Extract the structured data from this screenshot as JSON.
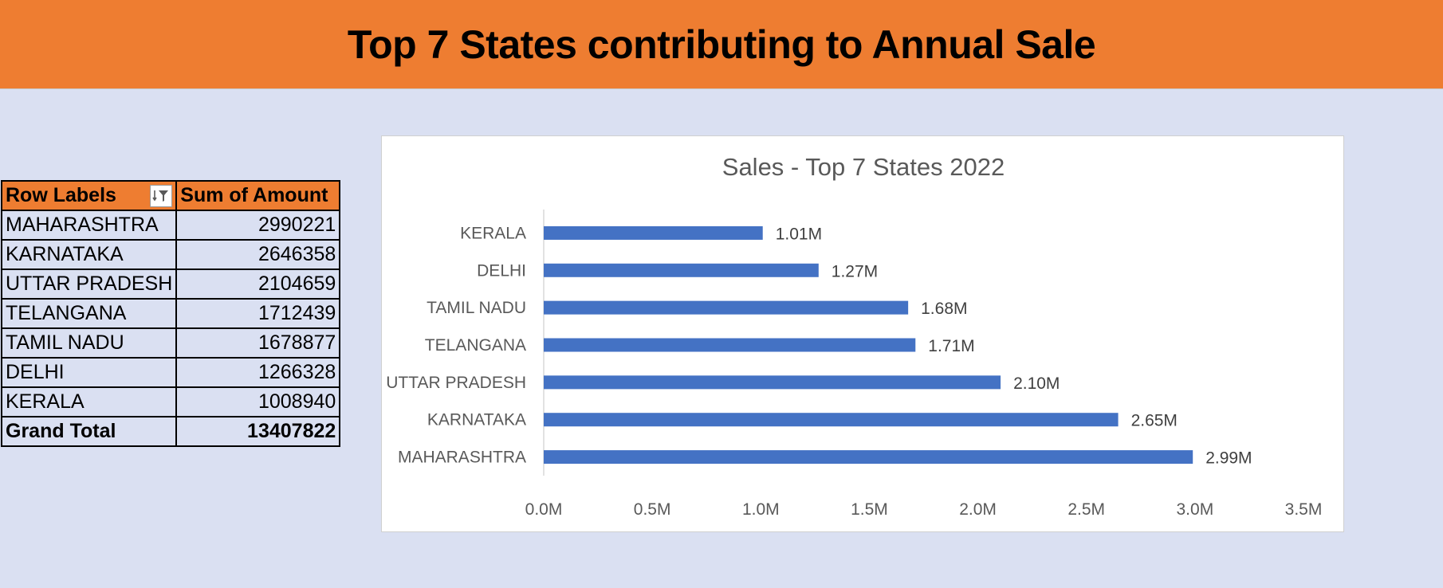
{
  "banner": {
    "title": "Top 7 States contributing to Annual Sale"
  },
  "pivot": {
    "headers": {
      "row_labels": "Row Labels",
      "sum_of_amount": "Sum of Amount"
    },
    "rows": [
      {
        "state": "MAHARASHTRA",
        "amount": "2990221"
      },
      {
        "state": "KARNATAKA",
        "amount": "2646358"
      },
      {
        "state": "UTTAR PRADESH",
        "amount": "2104659"
      },
      {
        "state": "TELANGANA",
        "amount": "1712439"
      },
      {
        "state": "TAMIL NADU",
        "amount": "1678877"
      },
      {
        "state": "DELHI",
        "amount": "1266328"
      },
      {
        "state": "KERALA",
        "amount": "1008940"
      }
    ],
    "total": {
      "label": "Grand Total",
      "amount": "13407822"
    },
    "filter_icon": "sort-filter-icon"
  },
  "chart_data": {
    "type": "bar",
    "orientation": "horizontal",
    "title": "Sales - Top 7 States 2022",
    "categories": [
      "MAHARASHTRA",
      "KARNATAKA",
      "UTTAR PRADESH",
      "TELANGANA",
      "TAMIL NADU",
      "DELHI",
      "KERALA"
    ],
    "values": [
      2990221,
      2646358,
      2104659,
      1712439,
      1678877,
      1266328,
      1008940
    ],
    "data_labels": [
      "2.99M",
      "2.65M",
      "2.10M",
      "1.71M",
      "1.68M",
      "1.27M",
      "1.01M"
    ],
    "xlim": [
      0,
      3500000
    ],
    "xticks": [
      0,
      500000,
      1000000,
      1500000,
      2000000,
      2500000,
      3000000,
      3500000
    ],
    "xtick_labels": [
      "0.0M",
      "0.5M",
      "1.0M",
      "1.5M",
      "2.0M",
      "2.5M",
      "3.0M",
      "3.5M"
    ],
    "bar_color": "#4472c4",
    "grid": false,
    "legend": "none",
    "xlabel": "",
    "ylabel": ""
  }
}
